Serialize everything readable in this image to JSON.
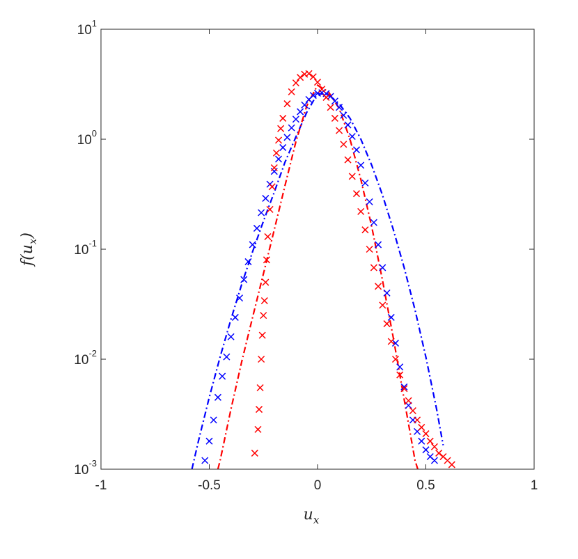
{
  "chart_data": {
    "type": "scatter",
    "title": "",
    "xlabel": {
      "main": "u",
      "sub": "x"
    },
    "ylabel": {
      "prefix": "f(",
      "var": "u",
      "sub": "x",
      "suffix": ")"
    },
    "x_range": [
      -1,
      1
    ],
    "y_range": [
      0.001,
      10
    ],
    "y_scale": "log",
    "x_ticks": [
      -1,
      -0.5,
      0,
      0.5,
      1
    ],
    "x_tick_labels": [
      "-1",
      "-0.5",
      "0",
      "0.5",
      "1"
    ],
    "y_ticks": [
      0.001,
      0.01,
      0.1,
      1,
      10
    ],
    "y_tick_labels": [
      {
        "base": "10",
        "exp": "-3"
      },
      {
        "base": "10",
        "exp": "-2"
      },
      {
        "base": "10",
        "exp": "-1"
      },
      {
        "base": "10",
        "exp": "0"
      },
      {
        "base": "10",
        "exp": "1"
      }
    ],
    "grid": false,
    "legend": "none",
    "colors": {
      "red": "#ff0000",
      "blue": "#0000ff",
      "axis": "#262626"
    },
    "curves": [
      {
        "color": "#0000ff",
        "style": "dash-dot",
        "x": [
          -0.58,
          -0.55,
          -0.5,
          -0.45,
          -0.4,
          -0.35,
          -0.3,
          -0.25,
          -0.2,
          -0.15,
          -0.1,
          -0.05,
          0,
          0.05,
          0.1,
          0.15,
          0.2,
          0.25,
          0.3,
          0.35,
          0.4,
          0.45,
          0.5,
          0.55,
          0.58
        ],
        "y": [
          0.001,
          0.0018,
          0.0045,
          0.0105,
          0.023,
          0.048,
          0.095,
          0.18,
          0.33,
          0.62,
          1.05,
          1.75,
          2.6,
          2.55,
          2.1,
          1.55,
          1.0,
          0.58,
          0.31,
          0.15,
          0.068,
          0.028,
          0.0105,
          0.0035,
          0.00165
        ]
      },
      {
        "color": "#ff0000",
        "style": "dash-dot",
        "x": [
          -0.46,
          -0.45,
          -0.4,
          -0.35,
          -0.3,
          -0.25,
          -0.2,
          -0.15,
          -0.1,
          -0.05,
          0,
          0.05,
          0.1,
          0.15,
          0.2,
          0.25,
          0.3,
          0.35,
          0.4,
          0.45,
          0.47
        ],
        "y": [
          0.001,
          0.0012,
          0.0035,
          0.0095,
          0.024,
          0.06,
          0.15,
          0.38,
          0.95,
          2.0,
          3.1,
          2.7,
          1.9,
          1.0,
          0.43,
          0.16,
          0.052,
          0.0155,
          0.0043,
          0.0012,
          0.0009
        ]
      }
    ],
    "markers": [
      {
        "color": "#0000ff",
        "symbol": "x",
        "x": [
          -0.52,
          -0.5,
          -0.48,
          -0.46,
          -0.44,
          -0.42,
          -0.4,
          -0.38,
          -0.36,
          -0.34,
          -0.32,
          -0.3,
          -0.28,
          -0.26,
          -0.24,
          -0.22,
          -0.2,
          -0.18,
          -0.16,
          -0.14,
          -0.12,
          -0.1,
          -0.08,
          -0.06,
          -0.04,
          -0.02,
          0,
          0.02,
          0.04,
          0.06,
          0.08,
          0.1,
          0.12,
          0.14,
          0.16,
          0.18,
          0.2,
          0.22,
          0.24,
          0.26,
          0.28,
          0.3,
          0.32,
          0.34,
          0.36,
          0.38,
          0.4,
          0.42,
          0.44,
          0.46,
          0.48,
          0.5,
          0.52,
          0.54
        ],
        "y": [
          0.0012,
          0.0018,
          0.0028,
          0.0045,
          0.007,
          0.0105,
          0.016,
          0.024,
          0.036,
          0.053,
          0.077,
          0.11,
          0.155,
          0.215,
          0.29,
          0.39,
          0.51,
          0.66,
          0.84,
          1.04,
          1.27,
          1.52,
          1.78,
          2.05,
          2.3,
          2.5,
          2.62,
          2.65,
          2.6,
          2.45,
          2.22,
          1.95,
          1.65,
          1.35,
          1.06,
          0.8,
          0.58,
          0.4,
          0.27,
          0.175,
          0.11,
          0.068,
          0.04,
          0.024,
          0.014,
          0.0085,
          0.0056,
          0.0038,
          0.0028,
          0.0022,
          0.0018,
          0.0015,
          0.0013,
          0.0012
        ]
      },
      {
        "color": "#ff0000",
        "symbol": "x",
        "x": [
          -0.29,
          -0.275,
          -0.27,
          -0.265,
          -0.26,
          -0.255,
          -0.25,
          -0.245,
          -0.24,
          -0.235,
          -0.23,
          -0.22,
          -0.21,
          -0.2,
          -0.19,
          -0.18,
          -0.17,
          -0.16,
          -0.14,
          -0.12,
          -0.1,
          -0.08,
          -0.06,
          -0.04,
          -0.02,
          0,
          0.02,
          0.04,
          0.06,
          0.08,
          0.1,
          0.12,
          0.14,
          0.16,
          0.18,
          0.2,
          0.22,
          0.24,
          0.26,
          0.28,
          0.3,
          0.32,
          0.34,
          0.36,
          0.38,
          0.4,
          0.42,
          0.44,
          0.46,
          0.48,
          0.5,
          0.52,
          0.54,
          0.56,
          0.58,
          0.6,
          0.62
        ],
        "y": [
          0.0014,
          0.0023,
          0.0035,
          0.0055,
          0.01,
          0.0165,
          0.025,
          0.034,
          0.05,
          0.08,
          0.13,
          0.23,
          0.37,
          0.55,
          0.75,
          0.98,
          1.25,
          1.55,
          2.1,
          2.7,
          3.25,
          3.65,
          3.9,
          3.95,
          3.7,
          3.3,
          2.85,
          2.4,
          1.95,
          1.55,
          1.2,
          0.9,
          0.65,
          0.46,
          0.32,
          0.22,
          0.15,
          0.1,
          0.068,
          0.046,
          0.031,
          0.021,
          0.0145,
          0.01,
          0.0072,
          0.0054,
          0.0042,
          0.0034,
          0.0028,
          0.0024,
          0.0021,
          0.0018,
          0.0016,
          0.0014,
          0.0013,
          0.0012,
          0.0011
        ]
      }
    ]
  }
}
